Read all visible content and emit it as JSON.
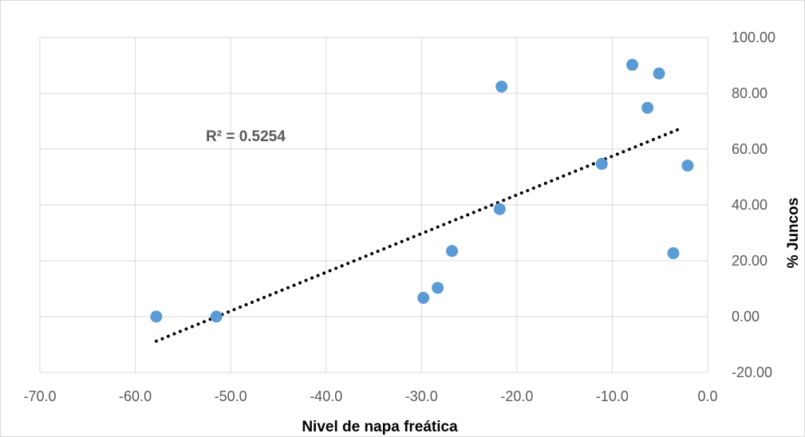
{
  "chart_data": {
    "type": "scatter",
    "title": "",
    "xlabel": "Nivel de napa freática",
    "ylabel": "% Juncos",
    "xlim": [
      -70,
      0
    ],
    "ylim": [
      -20,
      100
    ],
    "x_ticks": [
      "-70.0",
      "-60.0",
      "-50.0",
      "-40.0",
      "-30.0",
      "-20.0",
      "-10.0",
      "0.0"
    ],
    "y_ticks": [
      "-20.00",
      "0.00",
      "20.00",
      "40.00",
      "60.00",
      "80.00",
      "100.00"
    ],
    "y_axis_side": "right",
    "grid": true,
    "legend": "none",
    "series": [
      {
        "x": [
          -57.8,
          -51.5,
          -29.8,
          -28.3,
          -26.8,
          -21.8,
          -21.6,
          -11.1,
          -7.9,
          -6.3,
          -5.1,
          -3.6,
          -2.1
        ],
        "y": [
          0.0,
          0.0,
          6.7,
          10.3,
          23.5,
          38.5,
          82.4,
          54.7,
          90.2,
          74.8,
          87.1,
          22.7,
          54.1
        ],
        "color": "#5b9bd5"
      }
    ],
    "trendline": {
      "type": "linear",
      "x": [
        -57.8,
        -2.9
      ],
      "y": [
        -8.8,
        67.3
      ],
      "style": "dotted",
      "color": "#000000",
      "r2_label": "R² = 0.5254"
    }
  }
}
